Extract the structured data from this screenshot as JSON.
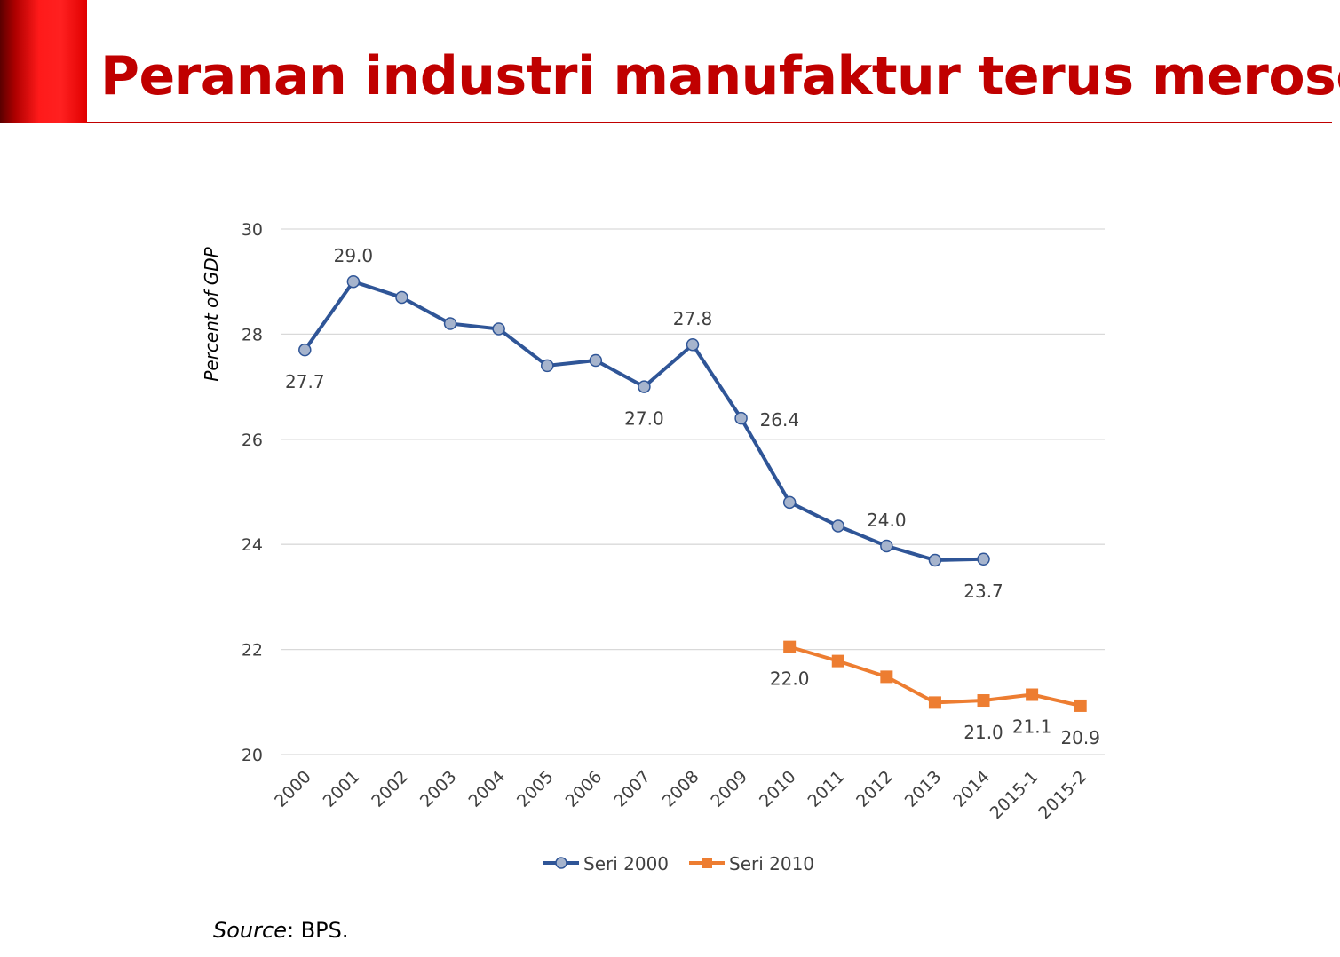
{
  "slide": {
    "title": "Peranan industri manufaktur terus merosot",
    "source_label": "Source",
    "source_text": ": BPS."
  },
  "colors": {
    "accent": "#c00000",
    "series_2000": "#2f5597",
    "series_2000_marker": "#a6b4cd",
    "series_2010": "#ed7d31",
    "grid": "#d9d9d9",
    "text": "#404040"
  },
  "chart_data": {
    "type": "line",
    "title": "",
    "xlabel": "",
    "ylabel": "Percent of GDP",
    "ylim": [
      20,
      30
    ],
    "yticks": [
      20,
      22,
      24,
      26,
      28,
      30
    ],
    "grid": true,
    "legend_position": "bottom",
    "categories": [
      "2000",
      "2001",
      "2002",
      "2003",
      "2004",
      "2005",
      "2006",
      "2007",
      "2008",
      "2009",
      "2010",
      "2011",
      "2012",
      "2013",
      "2014",
      "2015-1",
      "2015-2"
    ],
    "series": [
      {
        "name": "Seri 2000",
        "color": "#2f5597",
        "marker": "circle",
        "values": [
          27.7,
          29.0,
          28.7,
          28.2,
          28.1,
          27.4,
          27.5,
          27.0,
          27.8,
          26.4,
          24.8,
          24.35,
          23.97,
          23.7,
          23.72,
          null,
          null
        ],
        "labels": [
          {
            "index": 0,
            "text": "27.7",
            "pos": "below"
          },
          {
            "index": 1,
            "text": "29.0",
            "pos": "above"
          },
          {
            "index": 7,
            "text": "27.0",
            "pos": "below"
          },
          {
            "index": 8,
            "text": "27.8",
            "pos": "above"
          },
          {
            "index": 9,
            "text": "26.4",
            "pos": "right"
          },
          {
            "index": 12,
            "text": "24.0",
            "pos": "above"
          },
          {
            "index": 14,
            "text": "23.7",
            "pos": "below"
          }
        ]
      },
      {
        "name": "Seri 2010",
        "color": "#ed7d31",
        "marker": "square",
        "values": [
          null,
          null,
          null,
          null,
          null,
          null,
          null,
          null,
          null,
          null,
          22.05,
          21.78,
          21.48,
          20.99,
          21.03,
          21.14,
          20.93
        ],
        "labels": [
          {
            "index": 10,
            "text": "22.0",
            "pos": "below"
          },
          {
            "index": 14,
            "text": "21.0",
            "pos": "below"
          },
          {
            "index": 15,
            "text": "21.1",
            "pos": "below"
          },
          {
            "index": 16,
            "text": "20.9",
            "pos": "below"
          }
        ]
      }
    ]
  }
}
